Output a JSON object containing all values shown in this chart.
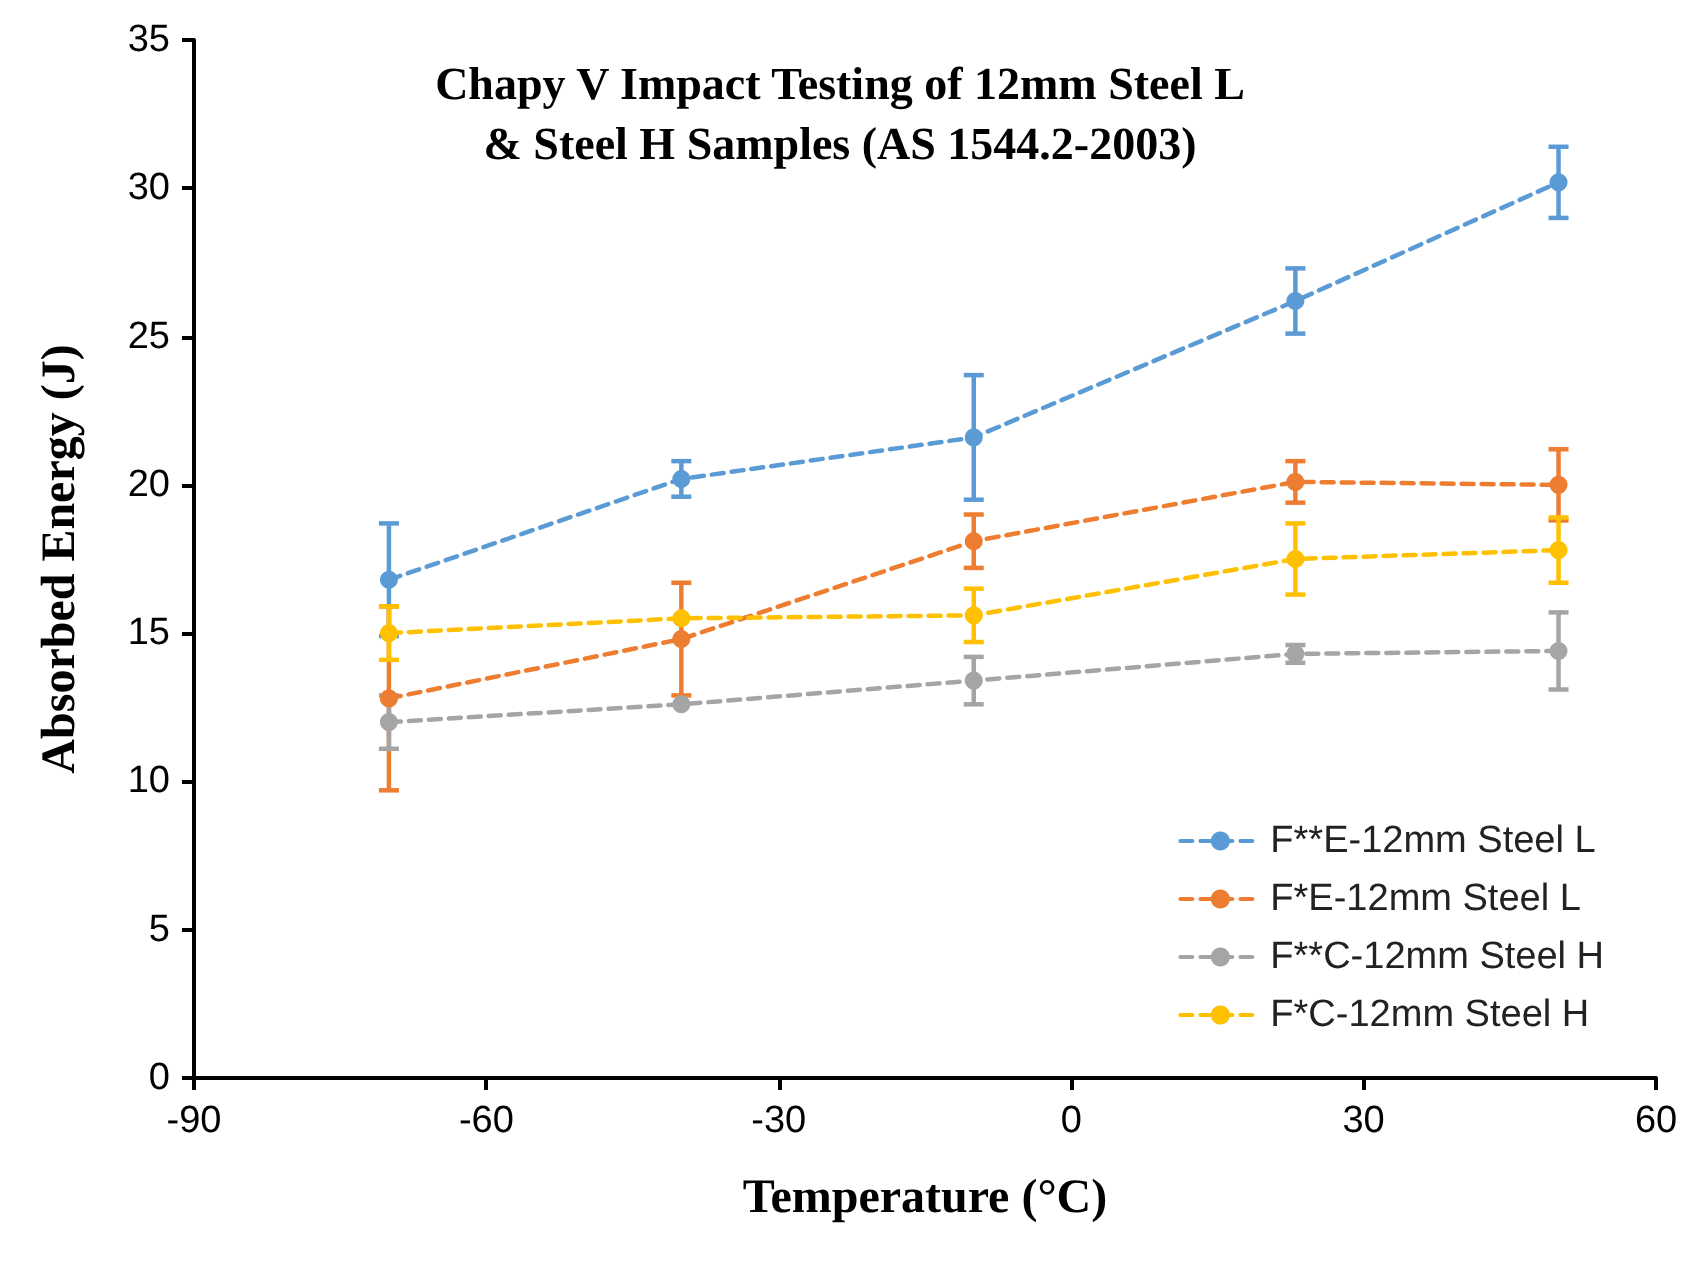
{
  "chart_data": {
    "type": "line",
    "title": "Chapy V Impact Testing of 12mm Steel L\n& Steel H Samples (AS 1544.2-2003)",
    "xlabel": "Temperature (°C)",
    "ylabel": "Absorbed Energy (J)",
    "x": [
      -70,
      -40,
      -10,
      23,
      50
    ],
    "series": [
      {
        "name": "F**E-12mm Steel L",
        "color": "#5b9bd5",
        "line_style": "dashed",
        "values": [
          16.8,
          20.2,
          21.6,
          26.2,
          30.2
        ],
        "errors": [
          1.9,
          0.6,
          2.1,
          1.1,
          1.2
        ]
      },
      {
        "name": "F*E-12mm Steel L",
        "color": "#ed7d31",
        "line_style": "dashed",
        "values": [
          12.8,
          14.8,
          18.1,
          20.1,
          20.0
        ],
        "errors": [
          3.1,
          1.9,
          0.9,
          0.7,
          1.2
        ]
      },
      {
        "name": "F**C-12mm Steel H",
        "color": "#a5a5a5",
        "line_style": "dashed",
        "values": [
          12.0,
          12.6,
          13.4,
          14.3,
          14.4
        ],
        "errors": [
          0.9,
          null,
          0.8,
          0.3,
          1.3
        ]
      },
      {
        "name": "F*C-12mm Steel H",
        "color": "#ffc000",
        "line_style": "dashed",
        "values": [
          15.0,
          15.5,
          15.6,
          17.5,
          17.8
        ],
        "errors": [
          0.9,
          null,
          0.9,
          1.2,
          1.1
        ]
      }
    ],
    "xlim": [
      -90,
      60
    ],
    "xticks": [
      -90,
      -60,
      -30,
      0,
      30,
      60
    ],
    "ylim": [
      0,
      35
    ],
    "yticks": [
      0,
      5,
      10,
      15,
      20,
      25,
      30,
      35
    ],
    "grid": false,
    "legend": "bottom right",
    "marker": "circle"
  }
}
